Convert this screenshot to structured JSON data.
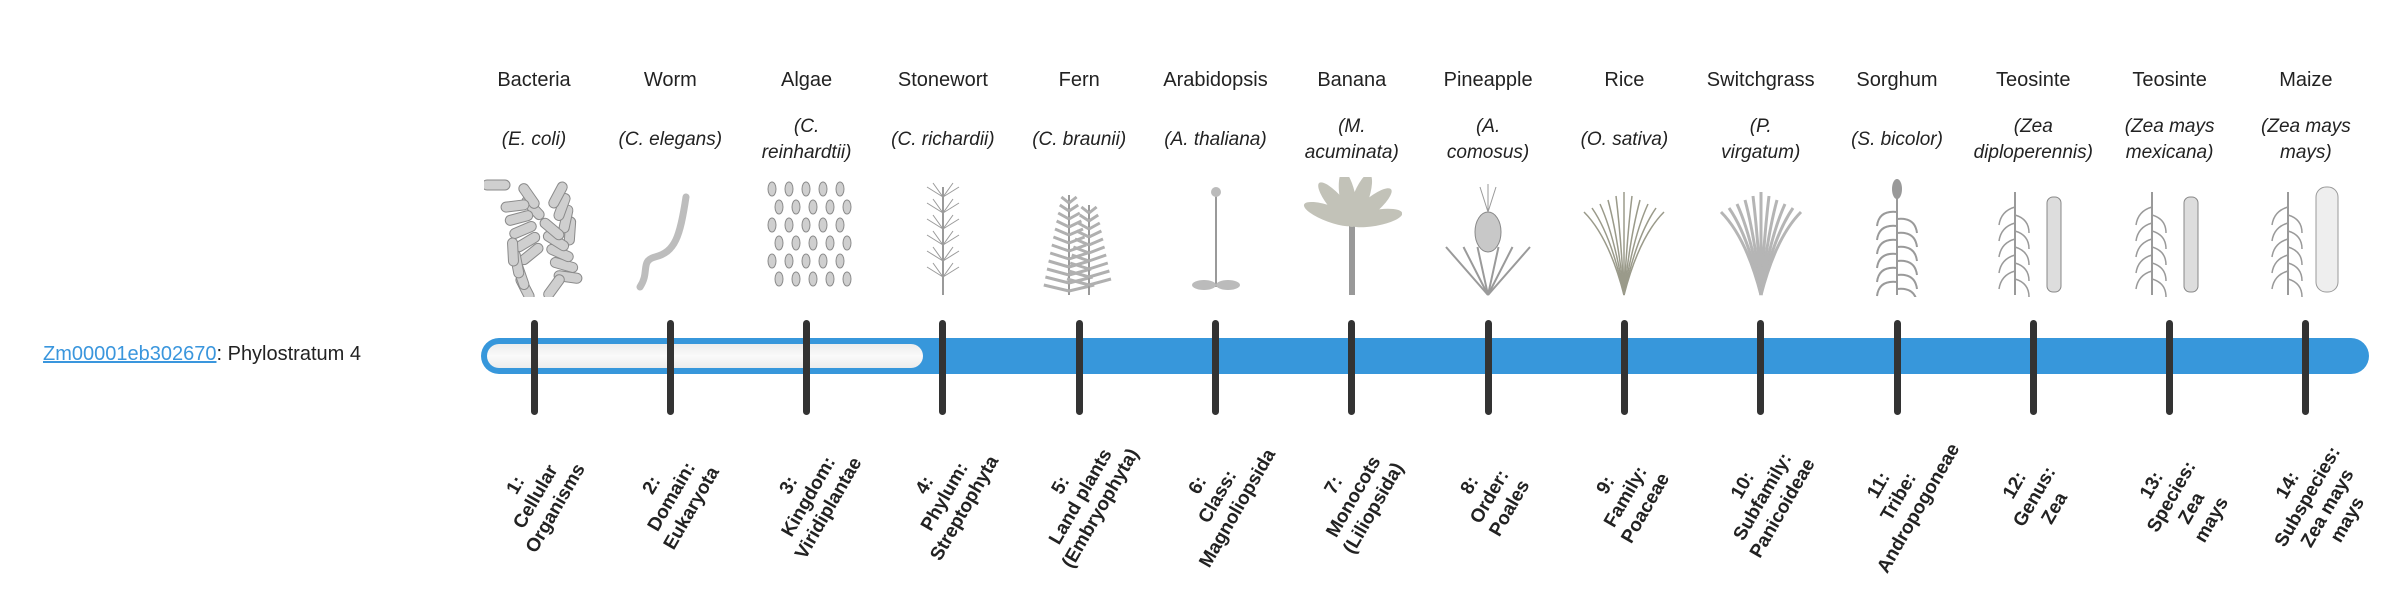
{
  "gene": {
    "id": "Zm00001eb302670",
    "suffix": ": Phylostratum 4",
    "phylostratum": 4,
    "total_strata": 14
  },
  "colors": {
    "accent": "#3797db",
    "tick": "#333333",
    "link": "#3a96dd"
  },
  "organisms": [
    {
      "common": "Bacteria",
      "latin": [
        "(E. coli)"
      ],
      "icon": "bacteria-icon"
    },
    {
      "common": "Worm",
      "latin": [
        "(C. elegans)"
      ],
      "icon": "worm-icon"
    },
    {
      "common": "Algae",
      "latin": [
        "(C.",
        "reinhardtii)"
      ],
      "icon": "algae-icon"
    },
    {
      "common": "Stonewort",
      "latin": [
        "(C. richardii)"
      ],
      "icon": "stonewort-icon"
    },
    {
      "common": "Fern",
      "latin": [
        "(C. braunii)"
      ],
      "icon": "fern-icon"
    },
    {
      "common": "Arabidopsis",
      "latin": [
        "(A. thaliana)"
      ],
      "icon": "arabidopsis-icon"
    },
    {
      "common": "Banana",
      "latin": [
        "(M.",
        "acuminata)"
      ],
      "icon": "banana-icon"
    },
    {
      "common": "Pineapple",
      "latin": [
        "(A.",
        "comosus)"
      ],
      "icon": "pineapple-icon"
    },
    {
      "common": "Rice",
      "latin": [
        "(O. sativa)"
      ],
      "icon": "rice-icon"
    },
    {
      "common": "Switchgrass",
      "latin": [
        "(P.",
        "virgatum)"
      ],
      "icon": "switchgrass-icon"
    },
    {
      "common": "Sorghum",
      "latin": [
        "(S. bicolor)"
      ],
      "icon": "sorghum-icon"
    },
    {
      "common": "Teosinte",
      "latin": [
        "(Zea",
        "diploperennis)"
      ],
      "icon": "teosinte-icon"
    },
    {
      "common": "Teosinte",
      "latin": [
        "(Zea mays",
        "mexicana)"
      ],
      "icon": "teosinte-icon"
    },
    {
      "common": "Maize",
      "latin": [
        "(Zea mays",
        "mays)"
      ],
      "icon": "maize-icon"
    }
  ],
  "strata": [
    [
      "1:",
      "Cellular",
      "Organisms"
    ],
    [
      "2:",
      "Domain:",
      "Eukaryota"
    ],
    [
      "3:",
      "Kingdom:",
      "Viridiplantae"
    ],
    [
      "4:",
      "Phylum:",
      "Streptophyta"
    ],
    [
      "5:",
      "Land plants",
      "(Embryophyta)"
    ],
    [
      "6:",
      "Class:",
      "Magnoliopsida"
    ],
    [
      "7:",
      "Monocots",
      "(Liliopsida)"
    ],
    [
      "8:",
      "Order:",
      "Poales"
    ],
    [
      "9:",
      "Family:",
      "Poaceae"
    ],
    [
      "10:",
      "Subfamily:",
      "Panicoideae"
    ],
    [
      "11:",
      "Tribe:",
      "Andropogoneae"
    ],
    [
      "12:",
      "Genus:",
      "Zea"
    ],
    [
      "13:",
      "Species:",
      "Zea",
      "mays"
    ],
    [
      "14:",
      "Subspecies:",
      "Zea mays",
      "mays"
    ]
  ]
}
